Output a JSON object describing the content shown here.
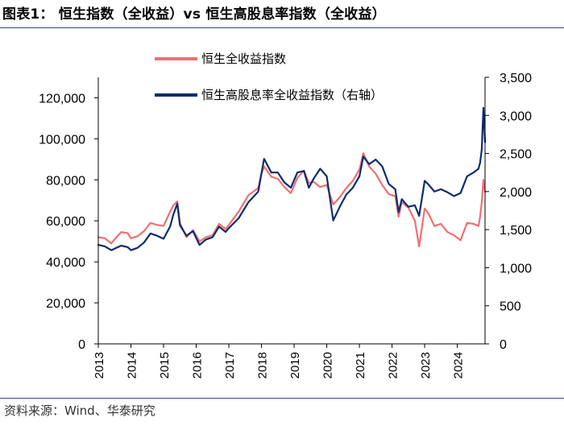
{
  "title": "图表1：  恒生指数（全收益）vs 恒生高股息率指数（全收益）",
  "source": "资料来源：Wind、华泰研究",
  "colors": {
    "series1": "#f07070",
    "series2": "#0e2c6e",
    "rule": "#2a4e8a",
    "axis": "#000000"
  },
  "chart_data": {
    "type": "line",
    "title": "恒生指数（全收益）vs 恒生高股息率指数（全收益）",
    "legend_position": "top",
    "grid": false,
    "x_ticks": [
      "2013",
      "2014",
      "2015",
      "2016",
      "2017",
      "2018",
      "2019",
      "2020",
      "2021",
      "2022",
      "2023",
      "2024"
    ],
    "xlim": [
      2013.0,
      2024.85
    ],
    "y_left": {
      "ylim": [
        0,
        130000
      ],
      "ticks": [
        0,
        20000,
        40000,
        60000,
        80000,
        100000,
        120000
      ],
      "tick_labels": [
        "0",
        "20,000",
        "40,000",
        "60,000",
        "80,000",
        "100,000",
        "120,000"
      ]
    },
    "y_right": {
      "ylim": [
        0,
        3500
      ],
      "ticks": [
        0,
        500,
        1000,
        1500,
        2000,
        2500,
        3000,
        3500
      ],
      "tick_labels": [
        "0",
        "500",
        "1,000",
        "1,500",
        "2,000",
        "2,500",
        "3,000",
        "3,500"
      ]
    },
    "series": [
      {
        "name": "恒生全收益指数",
        "axis": "left",
        "color": "#f07070",
        "x": [
          2013.0,
          2013.2,
          2013.4,
          2013.5,
          2013.7,
          2013.9,
          2014.0,
          2014.2,
          2014.4,
          2014.6,
          2014.8,
          2015.0,
          2015.2,
          2015.3,
          2015.42,
          2015.5,
          2015.7,
          2015.9,
          2016.1,
          2016.3,
          2016.5,
          2016.7,
          2016.9,
          2017.0,
          2017.3,
          2017.6,
          2017.9,
          2018.0,
          2018.08,
          2018.3,
          2018.5,
          2018.7,
          2018.9,
          2019.1,
          2019.3,
          2019.45,
          2019.6,
          2019.8,
          2020.0,
          2020.2,
          2020.4,
          2020.6,
          2020.8,
          2021.0,
          2021.12,
          2021.3,
          2021.5,
          2021.7,
          2021.9,
          2022.1,
          2022.2,
          2022.3,
          2022.5,
          2022.7,
          2022.83,
          2023.0,
          2023.1,
          2023.3,
          2023.5,
          2023.7,
          2023.9,
          2024.1,
          2024.3,
          2024.5,
          2024.65,
          2024.7,
          2024.75,
          2024.8,
          2024.85
        ],
        "values": [
          52000,
          51500,
          49000,
          51000,
          54500,
          54000,
          51500,
          52500,
          55000,
          59000,
          58000,
          57500,
          64500,
          67500,
          69500,
          59000,
          52000,
          55500,
          50000,
          52000,
          53000,
          58500,
          56000,
          58000,
          64500,
          72500,
          76000,
          83000,
          86500,
          81500,
          80500,
          76500,
          73500,
          81000,
          84500,
          78500,
          79000,
          76500,
          77500,
          68000,
          71500,
          76000,
          79500,
          85000,
          93000,
          86500,
          83000,
          77500,
          73000,
          72000,
          62000,
          69000,
          66500,
          60000,
          47500,
          66000,
          64000,
          57500,
          58500,
          54500,
          53000,
          50500,
          59000,
          58500,
          57500,
          62000,
          69000,
          80000,
          74000
        ]
      },
      {
        "name": "恒生高股息率全收益指数（右轴）",
        "axis": "right",
        "color": "#0e2c6e",
        "x": [
          2013.0,
          2013.2,
          2013.4,
          2013.5,
          2013.7,
          2013.9,
          2014.0,
          2014.2,
          2014.4,
          2014.6,
          2014.8,
          2015.0,
          2015.2,
          2015.3,
          2015.42,
          2015.5,
          2015.7,
          2015.9,
          2016.1,
          2016.3,
          2016.5,
          2016.7,
          2016.9,
          2017.0,
          2017.3,
          2017.6,
          2017.9,
          2018.0,
          2018.08,
          2018.3,
          2018.5,
          2018.7,
          2018.9,
          2019.1,
          2019.3,
          2019.45,
          2019.6,
          2019.8,
          2020.0,
          2020.2,
          2020.4,
          2020.6,
          2020.8,
          2021.0,
          2021.12,
          2021.3,
          2021.5,
          2021.7,
          2021.9,
          2022.1,
          2022.2,
          2022.3,
          2022.5,
          2022.7,
          2022.83,
          2023.0,
          2023.1,
          2023.3,
          2023.5,
          2023.7,
          2023.9,
          2024.1,
          2024.3,
          2024.5,
          2024.65,
          2024.7,
          2024.75,
          2024.8,
          2024.85
        ],
        "values": [
          1300,
          1280,
          1230,
          1250,
          1290,
          1270,
          1230,
          1260,
          1330,
          1450,
          1420,
          1380,
          1540,
          1700,
          1840,
          1560,
          1420,
          1480,
          1300,
          1370,
          1400,
          1540,
          1470,
          1520,
          1650,
          1860,
          2000,
          2240,
          2430,
          2250,
          2250,
          2120,
          2050,
          2250,
          2270,
          2050,
          2170,
          2300,
          2200,
          1620,
          1800,
          1960,
          2050,
          2200,
          2460,
          2360,
          2420,
          2330,
          2100,
          2030,
          1730,
          1900,
          1800,
          1820,
          1680,
          2140,
          2100,
          2000,
          2030,
          1990,
          1940,
          1980,
          2200,
          2250,
          2300,
          2380,
          2550,
          3100,
          2650
        ]
      }
    ]
  }
}
